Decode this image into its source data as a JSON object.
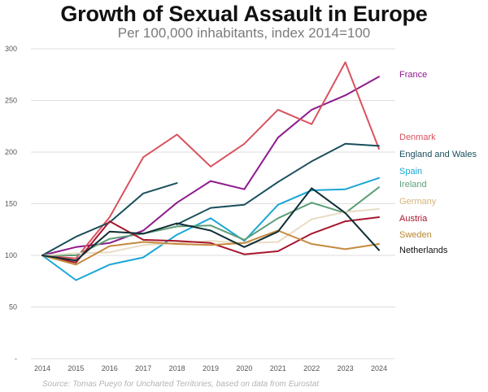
{
  "chart_data": {
    "type": "line",
    "title": "Growth of Sexual Assault in Europe",
    "subtitle": "Per 100,000 inhabitants, index 2014=100",
    "source": "Source: Tomas Pueyo for Uncharted Territories, based on data from Eurostat",
    "x": [
      2014,
      2015,
      2016,
      2017,
      2018,
      2019,
      2020,
      2021,
      2022,
      2023,
      2024
    ],
    "y_ticks": [
      "-",
      "50",
      "100",
      "150",
      "200",
      "250",
      "300"
    ],
    "ylim": [
      0,
      300
    ],
    "grid": true,
    "legend_position": "right",
    "series": [
      {
        "name": "France",
        "color": "#8e1a8e",
        "values": [
          100,
          108,
          112,
          124,
          151,
          172,
          164,
          214,
          241,
          255,
          273
        ]
      },
      {
        "name": "Denmark",
        "color": "#d9525e",
        "values": [
          100,
          97,
          137,
          195,
          217,
          186,
          208,
          241,
          227,
          287,
          203
        ]
      },
      {
        "name": "England and Wales",
        "color": "#1a4e5c",
        "values": [
          100,
          118,
          132,
          160,
          170,
          null,
          null,
          null,
          null,
          null,
          null
        ]
      },
      {
        "name": "England and Wales",
        "color": "#1a4e5c",
        "values": [
          null,
          null,
          null,
          null,
          130,
          146,
          149,
          171,
          191,
          208,
          206
        ]
      },
      {
        "name": "Spain",
        "color": "#1aa6d6",
        "values": [
          100,
          76,
          91,
          98,
          120,
          136,
          114,
          149,
          163,
          164,
          175
        ]
      },
      {
        "name": "Ireland",
        "color": "#5c9e78",
        "values": [
          100,
          100,
          116,
          121,
          128,
          129,
          115,
          136,
          151,
          141,
          166
        ]
      },
      {
        "name": "Germany",
        "color": "#e8dcc4",
        "values": [
          100,
          102,
          103,
          110,
          112,
          114,
          112,
          113,
          135,
          142,
          145
        ]
      },
      {
        "name": "Austria",
        "color": "#a8162e",
        "values": [
          100,
          93,
          133,
          115,
          114,
          112,
          101,
          104,
          121,
          133,
          137
        ]
      },
      {
        "name": "Sweden",
        "color": "#c48a3e",
        "values": [
          100,
          91,
          109,
          113,
          111,
          110,
          112,
          124,
          111,
          106,
          111
        ]
      },
      {
        "name": "Netherlands",
        "color": "#0f2e36",
        "values": [
          100,
          95,
          123,
          121,
          131,
          124,
          108,
          123,
          165,
          141,
          105
        ]
      }
    ],
    "legend": [
      {
        "name": "France",
        "color": "#8e1a8e"
      },
      {
        "name": "Denmark",
        "color": "#d9525e"
      },
      {
        "name": "England and Wales",
        "color": "#1a4e5c"
      },
      {
        "name": "Spain",
        "color": "#1aa6d6"
      },
      {
        "name": "Ireland",
        "color": "#5c9e78"
      },
      {
        "name": "Germany",
        "color": "#d6b478"
      },
      {
        "name": "Austria",
        "color": "#a8162e"
      },
      {
        "name": "Sweden",
        "color": "#b8862e"
      },
      {
        "name": "Netherlands",
        "color": "#111111"
      }
    ]
  }
}
